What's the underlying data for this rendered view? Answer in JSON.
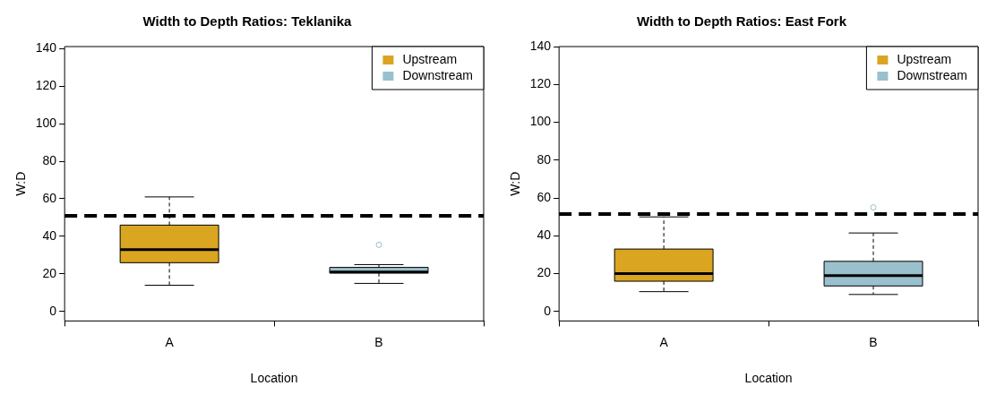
{
  "chart_data": [
    {
      "type": "box",
      "title": "Width to Depth Ratios: Teklanika",
      "xlabel": "Location",
      "ylabel": "W:D",
      "categories": [
        "A",
        "B"
      ],
      "ylim": [
        -5,
        141
      ],
      "yticks": [
        0,
        20,
        40,
        60,
        80,
        100,
        120,
        140
      ],
      "grid": false,
      "legend": "top right",
      "ref_lines": [
        {
          "axis": "y",
          "value": 51,
          "line_style": "dashed",
          "color": "#000000"
        }
      ],
      "series": [
        {
          "name": "Upstream",
          "color": "#daa520",
          "boxes": [
            {
              "low": 14,
              "q1": 26,
              "median": 33,
              "q3": 46,
              "high": 61
            },
            null
          ]
        },
        {
          "name": "Downstream",
          "color": "#9ac0cd",
          "boxes": [
            null,
            {
              "low": 15,
              "q1": 20.5,
              "median": 21,
              "q3": 23.5,
              "high": 25,
              "outliers": [
                35.5
              ]
            }
          ]
        }
      ]
    },
    {
      "type": "box",
      "title": "Width to Depth Ratios: East Fork",
      "xlabel": "Location",
      "ylabel": "W:D",
      "categories": [
        "A",
        "B"
      ],
      "ylim": [
        -5,
        140
      ],
      "yticks": [
        0,
        20,
        40,
        60,
        80,
        100,
        120,
        140
      ],
      "grid": false,
      "legend": "top right",
      "ref_lines": [
        {
          "axis": "y",
          "value": 51.5,
          "line_style": "dashed",
          "color": "#000000"
        }
      ],
      "series": [
        {
          "name": "Upstream",
          "color": "#daa520",
          "boxes": [
            {
              "low": 10.5,
              "q1": 16,
              "median": 20,
              "q3": 33,
              "high": 50
            },
            null
          ]
        },
        {
          "name": "Downstream",
          "color": "#9ac0cd",
          "boxes": [
            null,
            {
              "low": 9,
              "q1": 13.5,
              "median": 19,
              "q3": 26.5,
              "high": 41.5,
              "outliers": [
                55
              ]
            }
          ]
        }
      ]
    }
  ]
}
